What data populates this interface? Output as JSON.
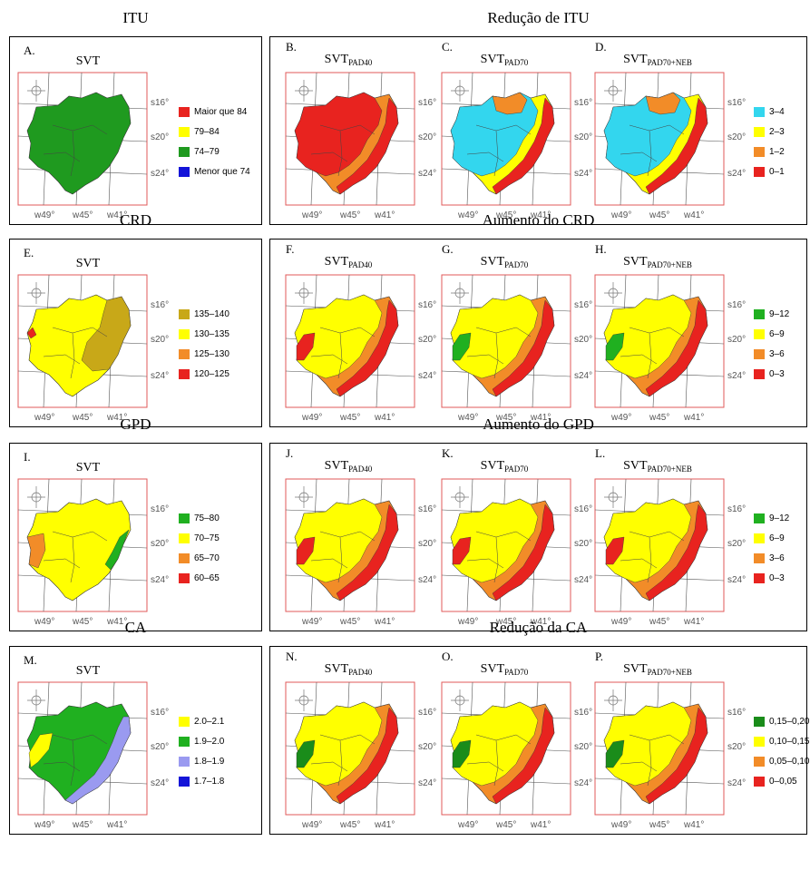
{
  "rows": [
    {
      "left_title": "ITU",
      "right_title": "Redução de ITU",
      "left_panel": {
        "letter": "A.",
        "name": "SVT",
        "sub": ""
      },
      "left_legend": [
        {
          "color": "#e8231f",
          "label": "Maior que 84"
        },
        {
          "color": "#ffff00",
          "label": "79–84"
        },
        {
          "color": "#1f9a1f",
          "label": "74–79"
        },
        {
          "color": "#1414d8",
          "label": "Menor que 74"
        }
      ],
      "panels": [
        {
          "letter": "B.",
          "name": "SVT",
          "sub": "PAD40"
        },
        {
          "letter": "C.",
          "name": "SVT",
          "sub": "PAD70"
        },
        {
          "letter": "D.",
          "name": "SVT",
          "sub": "PAD70+NEB"
        }
      ],
      "right_legend": [
        {
          "color": "#33d6ee",
          "label": "3–4"
        },
        {
          "color": "#ffff00",
          "label": "2–3"
        },
        {
          "color": "#f28c28",
          "label": "1–2"
        },
        {
          "color": "#e8231f",
          "label": "0–1"
        }
      ]
    },
    {
      "left_title": "CRD",
      "right_title": "Aumento do CRD",
      "left_panel": {
        "letter": "E.",
        "name": "SVT",
        "sub": ""
      },
      "left_legend": [
        {
          "color": "#c8a818",
          "label": "135–140"
        },
        {
          "color": "#ffff00",
          "label": "130–135"
        },
        {
          "color": "#f28c28",
          "label": "125–130"
        },
        {
          "color": "#e8231f",
          "label": "120–125"
        }
      ],
      "panels": [
        {
          "letter": "F.",
          "name": "SVT",
          "sub": "PAD40"
        },
        {
          "letter": "G.",
          "name": "SVT",
          "sub": "PAD70"
        },
        {
          "letter": "H.",
          "name": "SVT",
          "sub": "PAD70+NEB"
        }
      ],
      "right_legend": [
        {
          "color": "#20b020",
          "label": "9–12"
        },
        {
          "color": "#ffff00",
          "label": "6–9"
        },
        {
          "color": "#f28c28",
          "label": "3–6"
        },
        {
          "color": "#e8231f",
          "label": "0–3"
        }
      ]
    },
    {
      "left_title": "GPD",
      "right_title": "Aumento do GPD",
      "left_panel": {
        "letter": "I.",
        "name": "SVT",
        "sub": ""
      },
      "left_legend": [
        {
          "color": "#20b020",
          "label": "75–80"
        },
        {
          "color": "#ffff00",
          "label": "70–75"
        },
        {
          "color": "#f28c28",
          "label": "65–70"
        },
        {
          "color": "#e8231f",
          "label": "60–65"
        }
      ],
      "panels": [
        {
          "letter": "J.",
          "name": "SVT",
          "sub": "PAD40"
        },
        {
          "letter": "K.",
          "name": "SVT",
          "sub": "PAD70"
        },
        {
          "letter": "L.",
          "name": "SVT",
          "sub": "PAD70+NEB"
        }
      ],
      "right_legend": [
        {
          "color": "#20b020",
          "label": "9–12"
        },
        {
          "color": "#ffff00",
          "label": "6–9"
        },
        {
          "color": "#f28c28",
          "label": "3–6"
        },
        {
          "color": "#e8231f",
          "label": "0–3"
        }
      ]
    },
    {
      "left_title": "CA",
      "right_title": "Redução da CA",
      "left_panel": {
        "letter": "M.",
        "name": "SVT",
        "sub": ""
      },
      "left_legend": [
        {
          "color": "#ffff00",
          "label": "2.0–2.1"
        },
        {
          "color": "#20b020",
          "label": "1.9–2.0"
        },
        {
          "color": "#9a9af0",
          "label": "1.8–1.9"
        },
        {
          "color": "#1414d8",
          "label": "1.7–1.8"
        }
      ],
      "panels": [
        {
          "letter": "N.",
          "name": "SVT",
          "sub": "PAD40"
        },
        {
          "letter": "O.",
          "name": "SVT",
          "sub": "PAD70"
        },
        {
          "letter": "P.",
          "name": "SVT",
          "sub": "PAD70+NEB"
        }
      ],
      "right_legend": [
        {
          "color": "#1a8c1a",
          "label": "0,15–0,20"
        },
        {
          "color": "#ffff00",
          "label": "0,10–0,15"
        },
        {
          "color": "#f28c28",
          "label": "0,05–0,10"
        },
        {
          "color": "#e8231f",
          "label": "0–0,05"
        }
      ]
    }
  ],
  "map_labels": {
    "lat": [
      "s16°",
      "s20°",
      "s24°"
    ],
    "lon": [
      "w49°",
      "w45°",
      "w41°"
    ]
  },
  "map_fills": [
    [
      [
        "#1f9a1f"
      ],
      [
        "#f28c28",
        "#e8231f"
      ],
      [
        "#ffff00",
        "#33d6ee",
        "#f28c28",
        "#e8231f"
      ],
      [
        "#ffff00",
        "#33d6ee",
        "#f28c28",
        "#e8231f"
      ]
    ],
    [
      [
        "#ffff00",
        "#c8a818",
        "#e8231f"
      ],
      [
        "#f28c28",
        "#ffff00",
        "#e8231f"
      ],
      [
        "#f28c28",
        "#ffff00",
        "#20b020",
        "#e8231f"
      ],
      [
        "#f28c28",
        "#ffff00",
        "#20b020",
        "#e8231f"
      ]
    ],
    [
      [
        "#ffff00",
        "#f28c28",
        "#20b020"
      ],
      [
        "#f28c28",
        "#ffff00",
        "#e8231f"
      ],
      [
        "#f28c28",
        "#ffff00",
        "#e8231f"
      ],
      [
        "#f28c28",
        "#ffff00",
        "#e8231f"
      ]
    ],
    [
      [
        "#20b020",
        "#9a9af0",
        "#ffff00"
      ],
      [
        "#f28c28",
        "#ffff00",
        "#1a8c1a",
        "#e8231f"
      ],
      [
        "#f28c28",
        "#ffff00",
        "#1a8c1a",
        "#e8231f"
      ],
      [
        "#f28c28",
        "#ffff00",
        "#1a8c1a",
        "#e8231f"
      ]
    ]
  ]
}
